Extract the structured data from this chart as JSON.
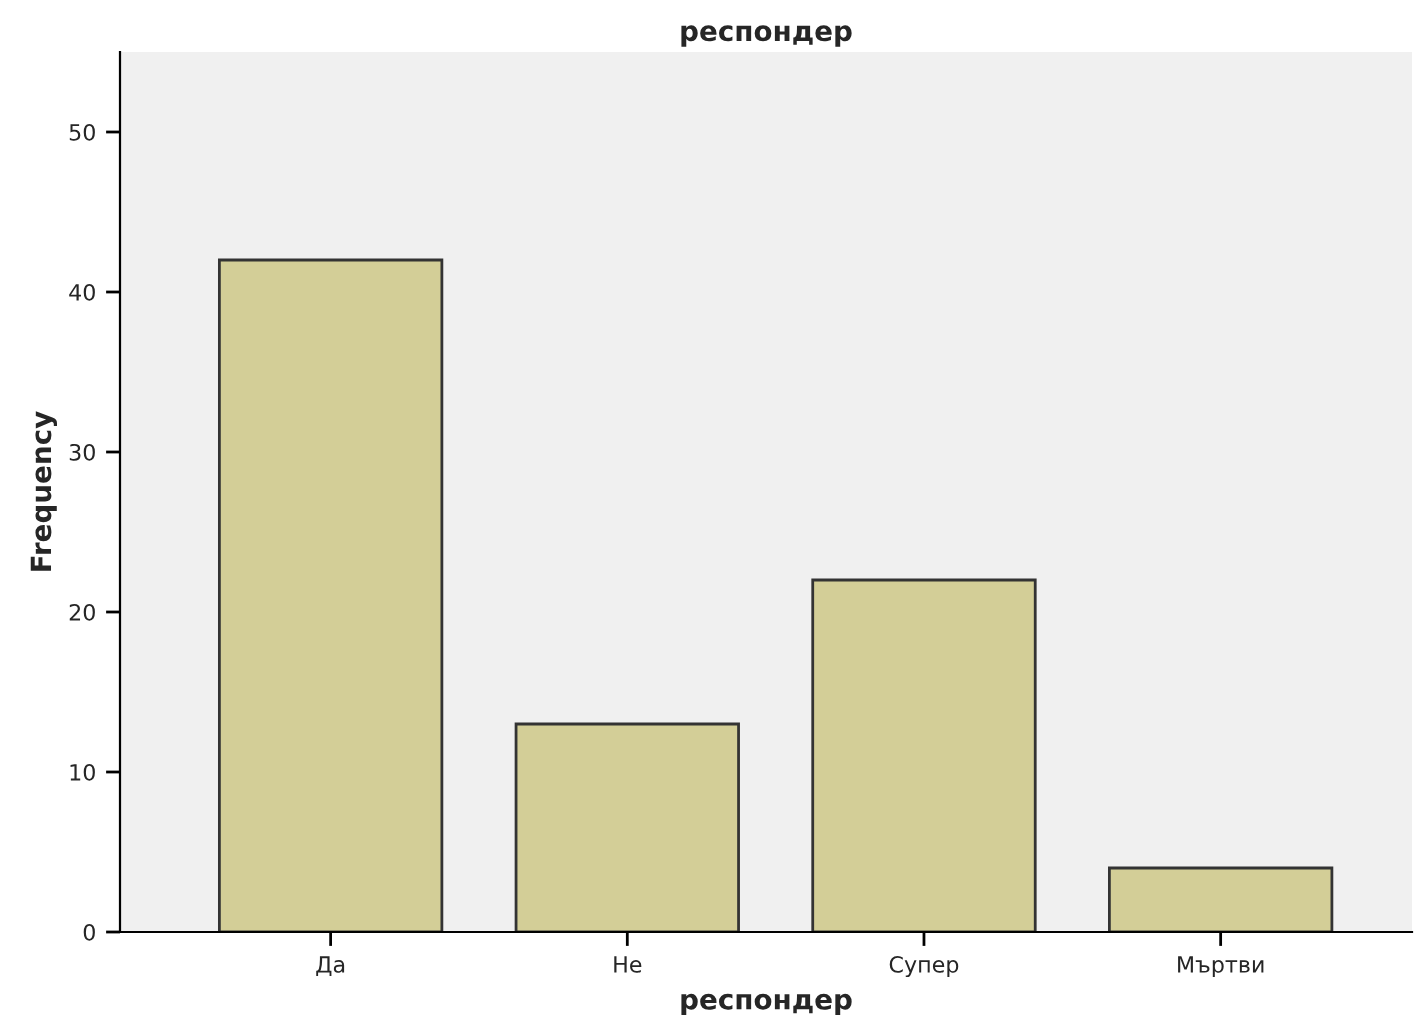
{
  "chart_data": {
    "type": "bar",
    "title": "респондер",
    "xlabel": "респондер",
    "ylabel": "Frequency",
    "categories": [
      "Да",
      "Не",
      "Супер",
      "Мъртви"
    ],
    "values": [
      42,
      13,
      22,
      4
    ],
    "color": "#d3ce97",
    "ylim": [
      0,
      55
    ],
    "yticks": [
      0,
      10,
      20,
      30,
      40,
      50
    ],
    "grid": false,
    "legend": false
  }
}
